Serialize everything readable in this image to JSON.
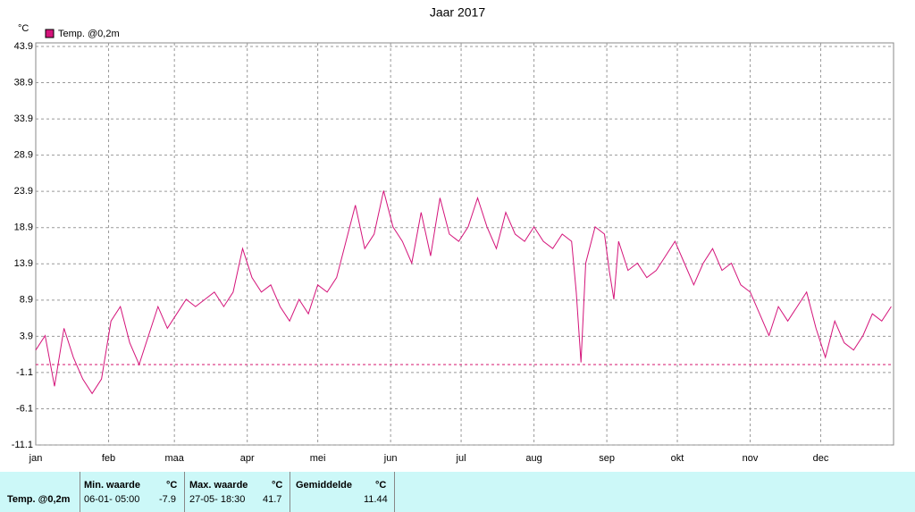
{
  "chart_data": {
    "type": "line",
    "title": "Jaar 2017",
    "y_unit": "°C",
    "xlim": [
      0,
      365
    ],
    "xticks": [
      {
        "value": 0,
        "label": "jan"
      },
      {
        "value": 31,
        "label": "feb"
      },
      {
        "value": 59,
        "label": "maa"
      },
      {
        "value": 90,
        "label": "apr"
      },
      {
        "value": 120,
        "label": "mei"
      },
      {
        "value": 151,
        "label": "jun"
      },
      {
        "value": 181,
        "label": "jul"
      },
      {
        "value": 212,
        "label": "aug"
      },
      {
        "value": 243,
        "label": "sep"
      },
      {
        "value": 273,
        "label": "okt"
      },
      {
        "value": 304,
        "label": "nov"
      },
      {
        "value": 334,
        "label": "dec"
      }
    ],
    "ylim": [
      -11.1,
      43.9
    ],
    "yticks": [
      -11.1,
      -6.1,
      -1.1,
      3.9,
      8.9,
      13.9,
      18.9,
      23.9,
      28.9,
      33.9,
      38.9,
      43.9
    ],
    "grid": true,
    "reference_line": 0,
    "reference_color": "#d4146e",
    "x": [
      0,
      4,
      8,
      12,
      16,
      20,
      24,
      28,
      32,
      36,
      40,
      44,
      48,
      52,
      56,
      60,
      64,
      68,
      72,
      76,
      80,
      84,
      88,
      92,
      96,
      100,
      104,
      108,
      112,
      116,
      120,
      124,
      128,
      132,
      136,
      140,
      144,
      148,
      152,
      156,
      160,
      164,
      168,
      172,
      176,
      180,
      184,
      188,
      192,
      196,
      200,
      204,
      208,
      212,
      216,
      220,
      224,
      228,
      230,
      232,
      234,
      238,
      242,
      244,
      246,
      248,
      252,
      256,
      260,
      264,
      268,
      272,
      276,
      280,
      284,
      288,
      292,
      296,
      300,
      304,
      308,
      312,
      316,
      320,
      324,
      328,
      332,
      336,
      340,
      344,
      348,
      352,
      356,
      360,
      364
    ],
    "series": [
      {
        "name": "Temp. @0,2m",
        "color": "#d4147a",
        "values": [
          2,
          4,
          -3,
          5,
          1,
          -2,
          -4,
          -2,
          6,
          8,
          3,
          0,
          4,
          8,
          5,
          7,
          9,
          8,
          9,
          10,
          8,
          10,
          16,
          12,
          10,
          11,
          8,
          6,
          9,
          7,
          11,
          10,
          12,
          17,
          22,
          16,
          18,
          24,
          19,
          17,
          14,
          21,
          15,
          23,
          18,
          17,
          19,
          23,
          19,
          16,
          21,
          18,
          17,
          19,
          17,
          16,
          18,
          17,
          10,
          0.3,
          14,
          19,
          18,
          13,
          9,
          17,
          13,
          14,
          12,
          13,
          15,
          17,
          14,
          11,
          14,
          16,
          13,
          14,
          11,
          10,
          7,
          4,
          8,
          6,
          8,
          10,
          5,
          1,
          6,
          3,
          2,
          4,
          7,
          6,
          8
        ]
      }
    ]
  },
  "table": {
    "header": [
      "Min. waarde",
      "°C",
      "Max. waarde",
      "°C",
      "Gemiddelde",
      "°C"
    ],
    "row": {
      "label": "Temp. @0,2m",
      "min_time": "06-01- 05:00",
      "min": "-7.9",
      "max_time": "27-05- 18:30",
      "max": "41.7",
      "avg": "11.44"
    }
  }
}
